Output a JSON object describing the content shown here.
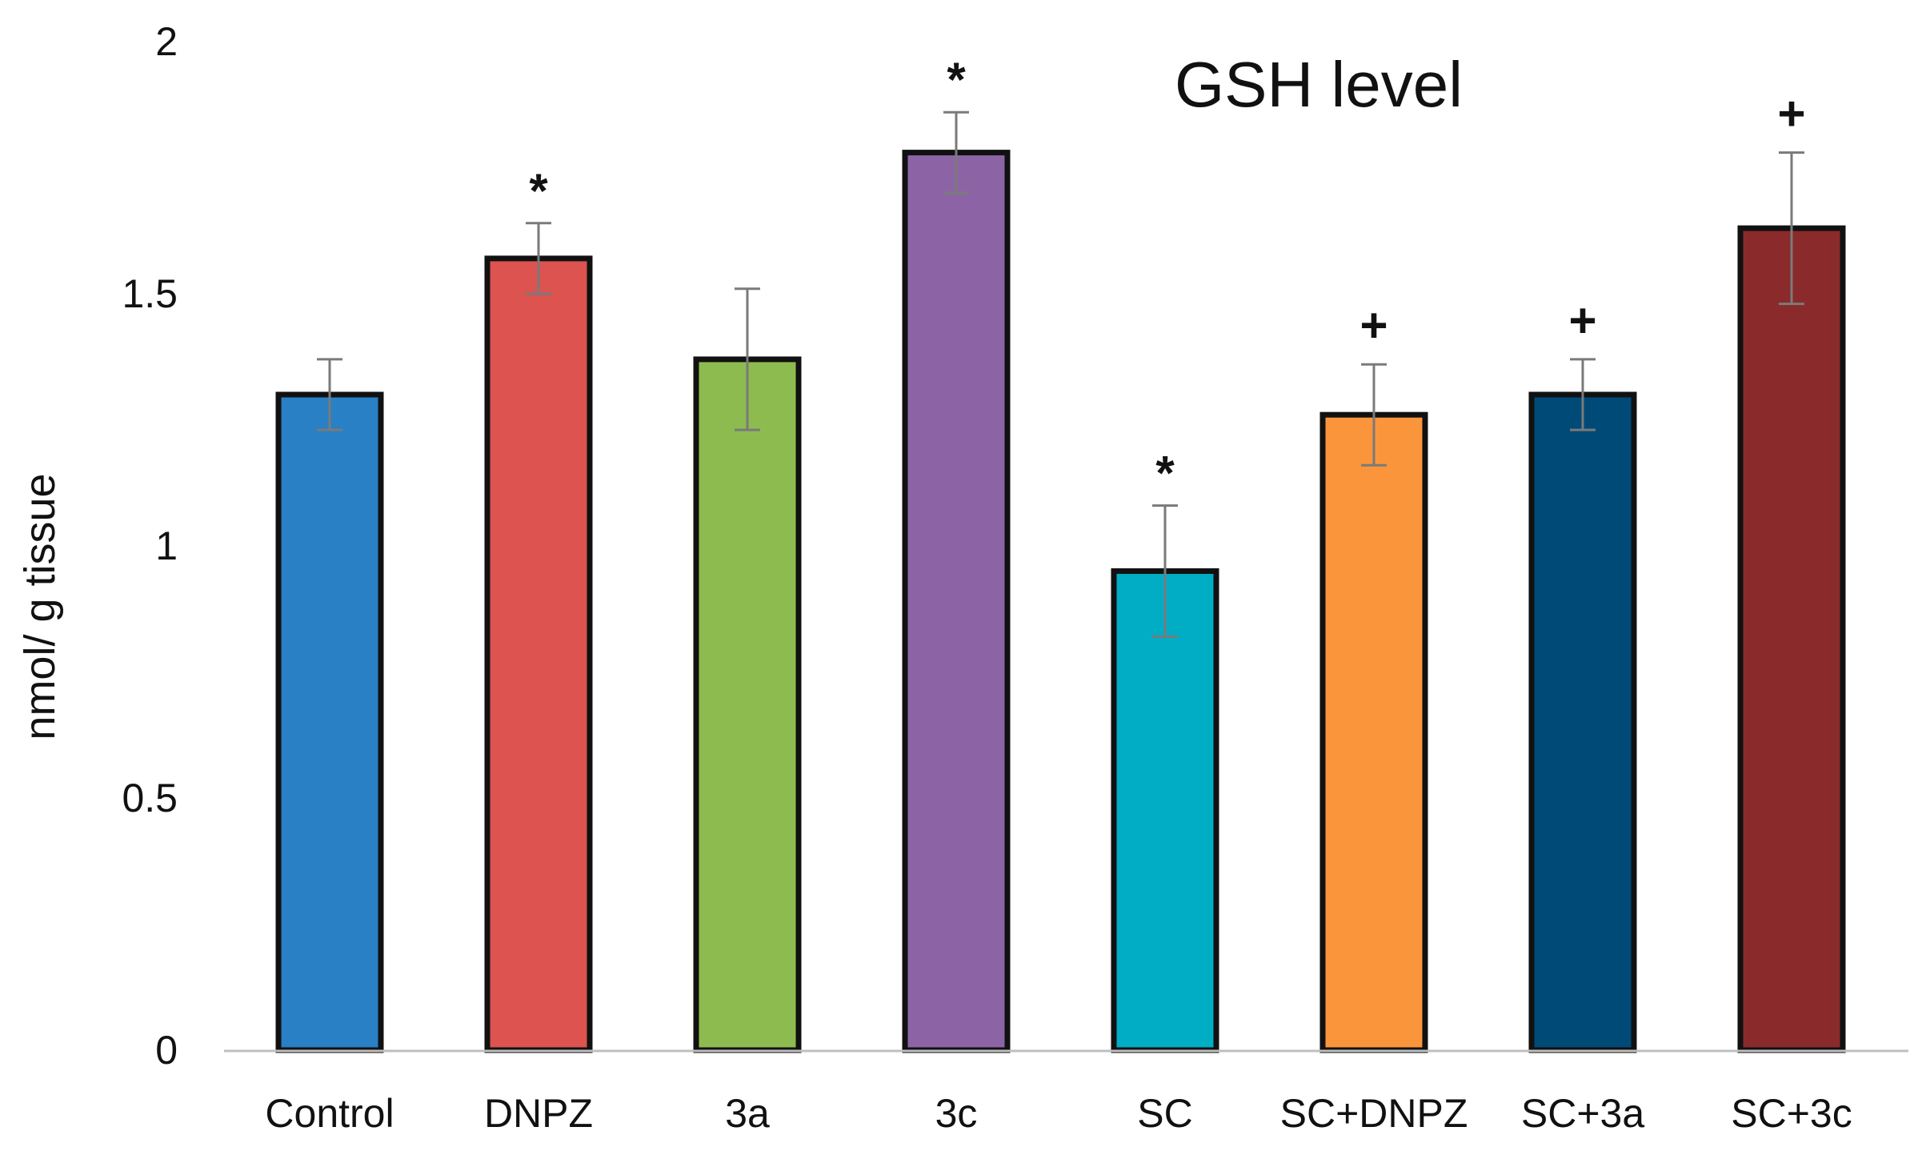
{
  "chart_data": {
    "type": "bar",
    "title": "GSH level",
    "xlabel": "",
    "ylabel": "nmol/ g tissue",
    "ylim": [
      0,
      2
    ],
    "yticks": [
      0,
      0.5,
      1,
      1.5,
      2
    ],
    "ytick_labels": [
      "0",
      "0.5",
      "1",
      "1.5",
      "2"
    ],
    "grid": false,
    "legend": "none",
    "categories": [
      "Control",
      "DNPZ",
      "3a",
      "3c",
      "SC",
      "SC+DNPZ",
      "SC+3a",
      "SC+3c"
    ],
    "values": [
      1.3,
      1.57,
      1.37,
      1.78,
      0.95,
      1.26,
      1.3,
      1.63
    ],
    "errors": [
      0.07,
      0.07,
      0.14,
      0.08,
      0.13,
      0.1,
      0.07,
      0.15
    ],
    "significance": [
      "",
      "*",
      "",
      "*",
      "*",
      "+",
      "+",
      "+"
    ],
    "colors": [
      "#2980C4",
      "#DC534F",
      "#8EBB4F",
      "#8C64A5",
      "#00ADC5",
      "#FB953B",
      "#004A77",
      "#8A2A2A"
    ],
    "bar_outline_color": "#111111",
    "error_bar_color": "#7A7A7A",
    "axis_line_color": "#BFBFBF"
  }
}
